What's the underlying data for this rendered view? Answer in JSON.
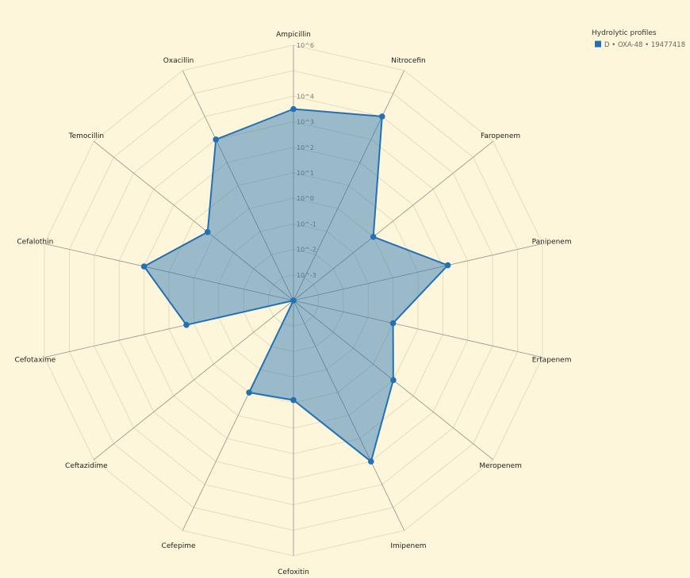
{
  "chart_data": {
    "type": "radar",
    "title": "",
    "scale": "log10",
    "axes": [
      "Ampicillin",
      "Nitrocefin",
      "Faropenem",
      "Panipenem",
      "Ertapenem",
      "Meropenem",
      "Imipenem",
      "Cefoxitin",
      "Cefepime",
      "Ceftazidime",
      "Cefotaxime",
      "Cefalothin",
      "Temocillin",
      "Oxacillin"
    ],
    "radial_ticks": [
      "10^-3",
      "10^-2",
      "10^-1",
      "10^0",
      "10^1",
      "10^2",
      "10^3",
      "10^4",
      "10^6"
    ],
    "rlim": [
      -4,
      6
    ],
    "grid": true,
    "legend": {
      "title": "Hydrolytic profiles",
      "placement": "top-right"
    },
    "series": [
      {
        "name": "D • OXA-48 • 19477418",
        "color": "#2271b3",
        "fill": "#2271b3",
        "values": [
          3.5,
          4.0,
          0.0,
          2.2,
          0.0,
          1.0,
          3.0,
          -0.1,
          0.0,
          -4.0,
          0.3,
          2.0,
          0.3,
          3.0
        ]
      }
    ]
  }
}
